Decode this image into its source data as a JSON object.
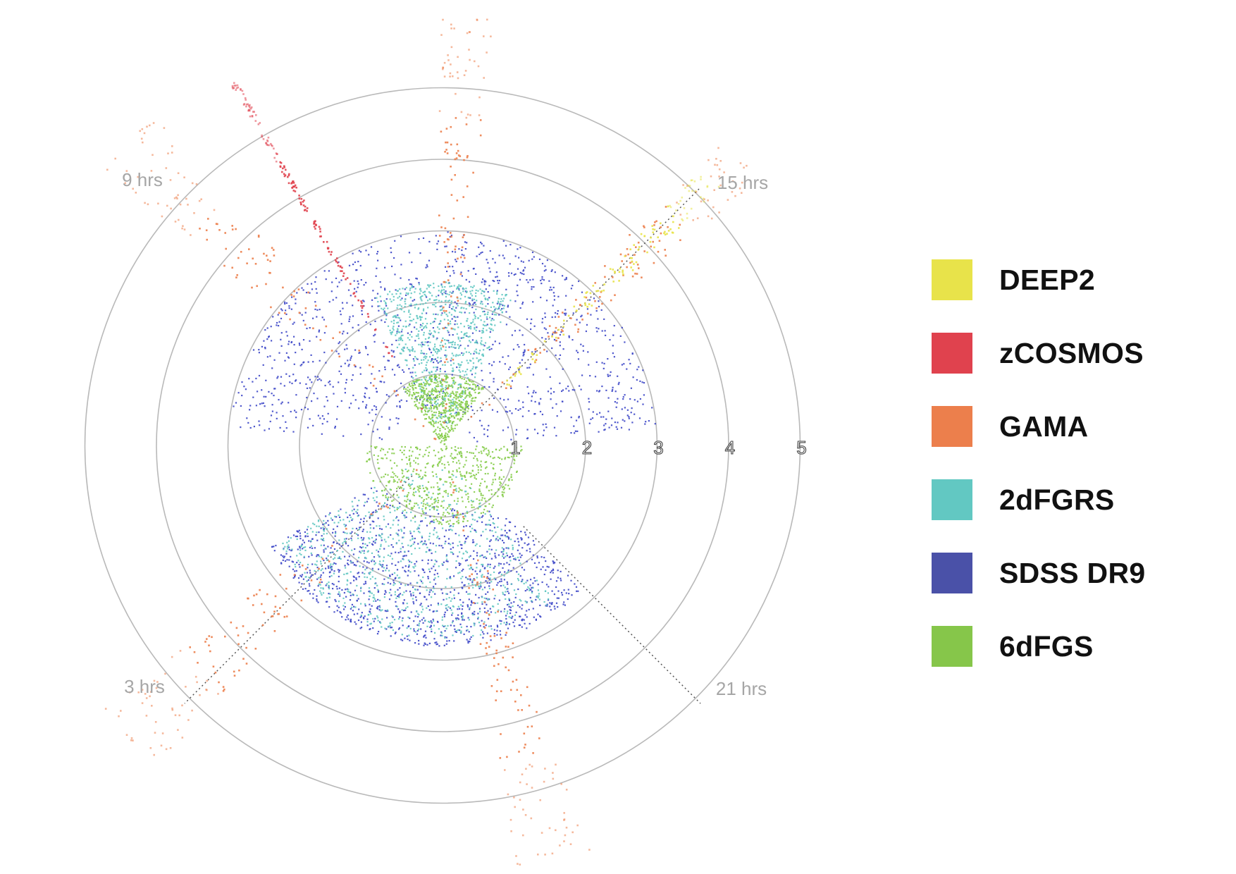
{
  "chart_data": {
    "type": "scatter",
    "projection": "polar (redshift cone diagram)",
    "radial_axis": {
      "ticks": [
        1,
        2,
        3,
        4,
        5
      ],
      "range": [
        0,
        5
      ],
      "circles": true
    },
    "angular_axis": {
      "labels": [
        {
          "text": "9 hrs",
          "ra_hours": 9
        },
        {
          "text": "15 hrs",
          "ra_hours": 15
        },
        {
          "text": "3 hrs",
          "ra_hours": 3
        },
        {
          "text": "21 hrs",
          "ra_hours": 21
        }
      ]
    },
    "legend_position": "right",
    "series": [
      {
        "name": "DEEP2",
        "color": "#e8e34a",
        "wedges": [
          {
            "angle_deg": 45,
            "half_width_deg": 2.2,
            "r_min": 0.8,
            "r_max": 5.3
          }
        ]
      },
      {
        "name": "zCOSMOS",
        "color": "#e0424e",
        "wedges": [
          {
            "angle_deg": 120,
            "half_width_deg": 0.5,
            "r_min": 0.3,
            "r_max": 5.9
          }
        ]
      },
      {
        "name": "GAMA",
        "color": "#ec7f4c",
        "wedges": [
          {
            "angle_deg": 87,
            "half_width_deg": 4.2,
            "r_min": 0,
            "r_max": 6.0
          },
          {
            "angle_deg": 44.5,
            "half_width_deg": 4.2,
            "r_min": 0,
            "r_max": 5.8
          },
          {
            "angle_deg": 136,
            "half_width_deg": 5.2,
            "r_min": 0,
            "r_max": 6.2
          },
          {
            "angle_deg": 223,
            "half_width_deg": 5.2,
            "r_min": 0,
            "r_max": 6.0
          },
          {
            "angle_deg": 285,
            "half_width_deg": 5.0,
            "r_min": 0,
            "r_max": 6.0
          }
        ]
      },
      {
        "name": "2dFGRS",
        "color": "#62c8c2",
        "wedges": [
          {
            "angle_deg": 90,
            "half_width_deg": 25,
            "r_min": 0.2,
            "r_max": 2.3
          },
          {
            "angle_deg": 258,
            "half_width_deg": 48,
            "r_min": 0.3,
            "r_max": 2.7
          }
        ]
      },
      {
        "name": "SDSS DR9",
        "color": "#3d47c8",
        "wedges": [
          {
            "angle_deg": 90,
            "half_width_deg": 85,
            "r_min": 0.3,
            "r_max": 3.0
          },
          {
            "angle_deg": 262,
            "half_width_deg": 52,
            "r_min": 0.8,
            "r_max": 2.8
          }
        ]
      },
      {
        "name": "6dFGS",
        "color": "#86cc4a",
        "wedges": [
          {
            "angle_deg": 270,
            "half_width_deg": 90,
            "r_min": 0,
            "r_max": 1.1
          },
          {
            "angle_deg": 90,
            "half_width_deg": 35,
            "r_min": 0,
            "r_max": 1.0
          }
        ]
      }
    ]
  },
  "legend": {
    "items": [
      {
        "label": "DEEP2",
        "color": "#e8e34a"
      },
      {
        "label": "zCOSMOS",
        "color": "#e0424e"
      },
      {
        "label": "GAMA",
        "color": "#ec7f4c"
      },
      {
        "label": "2dFGRS",
        "color": "#62c8c2"
      },
      {
        "label": "SDSS DR9",
        "color": "#4a51a8"
      },
      {
        "label": "6dFGS",
        "color": "#86c64a"
      }
    ]
  }
}
